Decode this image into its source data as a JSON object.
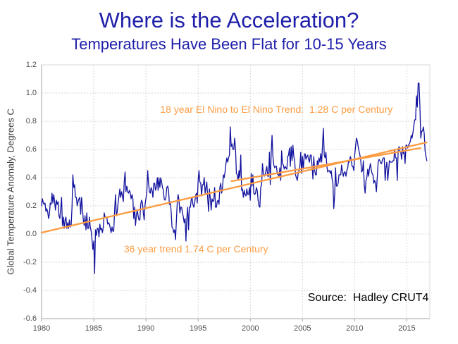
{
  "chart_data": {
    "type": "line",
    "title": "Where is the Acceleration?",
    "subtitle": "Temperatures Have Been Flat for 10-15 Years",
    "xlabel": "",
    "ylabel": "Global Temperature Anomaly, Degrees C",
    "xlim": [
      1980,
      2017.2
    ],
    "ylim": [
      -0.6,
      1.2
    ],
    "x_ticks": [
      1980,
      1985,
      1990,
      1995,
      2000,
      2005,
      2010,
      2015
    ],
    "y_ticks": [
      -0.6,
      -0.4,
      -0.2,
      0.0,
      0.2,
      0.4,
      0.6,
      0.8,
      1.0,
      1.2
    ],
    "grid": true,
    "legend": "none",
    "style": {
      "grid_color": "#d6d6d6",
      "border_color": "#d9d9d9",
      "axis_color": "#a6a6a6",
      "title_color": "#1f1faa",
      "tick_color": "#4d4d4d"
    },
    "series": [
      {
        "name": "HadCRUT4 monthly global temperature anomaly",
        "color": "#12129e",
        "start_year": 1980,
        "points_per_year": 12,
        "values": [
          0.2,
          0.25,
          0.22,
          0.21,
          0.22,
          0.16,
          0.18,
          0.16,
          0.11,
          0.14,
          0.22,
          0.21,
          0.29,
          0.22,
          0.28,
          0.23,
          0.17,
          0.24,
          0.21,
          0.23,
          0.13,
          0.11,
          0.18,
          0.26,
          0.06,
          0.12,
          0.04,
          0.1,
          0.12,
          0.04,
          0.08,
          0.04,
          0.1,
          0.05,
          0.06,
          0.19,
          0.42,
          0.33,
          0.35,
          0.26,
          0.26,
          0.2,
          0.23,
          0.25,
          0.26,
          0.14,
          0.26,
          0.18,
          0.1,
          0.06,
          0.13,
          0.03,
          0.15,
          0.04,
          0.04,
          0.12,
          0.05,
          0.02,
          -0.04,
          -0.11,
          -0.05,
          -0.28,
          0.03,
          -0.01,
          0.04,
          0.04,
          -0.02,
          0.07,
          0.03,
          0.04,
          0.01,
          0.05,
          0.15,
          0.12,
          0.12,
          0.12,
          0.07,
          0.08,
          0.07,
          0.04,
          0.01,
          0.05,
          0.02,
          0.02,
          0.17,
          0.28,
          0.13,
          0.16,
          0.22,
          0.27,
          0.32,
          0.26,
          0.3,
          0.27,
          0.23,
          0.37,
          0.44,
          0.3,
          0.34,
          0.3,
          0.29,
          0.31,
          0.29,
          0.25,
          0.28,
          0.25,
          0.11,
          0.19,
          0.06,
          0.13,
          0.17,
          0.13,
          0.1,
          0.1,
          0.21,
          0.24,
          0.22,
          0.15,
          0.1,
          0.21,
          0.25,
          0.3,
          0.45,
          0.36,
          0.3,
          0.29,
          0.33,
          0.31,
          0.26,
          0.36,
          0.36,
          0.31,
          0.33,
          0.4,
          0.31,
          0.4,
          0.33,
          0.4,
          0.37,
          0.33,
          0.31,
          0.25,
          0.24,
          0.26,
          0.33,
          0.34,
          0.31,
          0.21,
          0.23,
          0.16,
          0.05,
          0.04,
          0.01,
          0.03,
          -0.04,
          0.09,
          0.23,
          0.28,
          0.24,
          0.15,
          0.19,
          0.19,
          0.15,
          0.12,
          0.08,
          0.11,
          -0.05,
          0.11,
          0.19,
          0.03,
          0.19,
          0.19,
          0.24,
          0.26,
          0.21,
          0.19,
          0.22,
          0.27,
          0.29,
          0.22,
          0.38,
          0.45,
          0.37,
          0.36,
          0.27,
          0.35,
          0.35,
          0.4,
          0.29,
          0.33,
          0.37,
          0.25,
          0.16,
          0.32,
          0.25,
          0.17,
          0.25,
          0.23,
          0.24,
          0.33,
          0.19,
          0.19,
          0.23,
          0.24,
          0.21,
          0.33,
          0.36,
          0.29,
          0.32,
          0.42,
          0.4,
          0.44,
          0.5,
          0.54,
          0.51,
          0.54,
          0.56,
          0.76,
          0.62,
          0.64,
          0.6,
          0.6,
          0.68,
          0.6,
          0.43,
          0.42,
          0.38,
          0.45,
          0.4,
          0.56,
          0.31,
          0.32,
          0.26,
          0.31,
          0.28,
          0.27,
          0.32,
          0.28,
          0.28,
          0.33,
          0.24,
          0.43,
          0.34,
          0.42,
          0.29,
          0.28,
          0.29,
          0.33,
          0.31,
          0.24,
          0.2,
          0.19,
          0.33,
          0.35,
          0.5,
          0.43,
          0.41,
          0.42,
          0.45,
          0.48,
          0.41,
          0.41,
          0.58,
          0.35,
          0.58,
          0.7,
          0.55,
          0.49,
          0.47,
          0.48,
          0.48,
          0.43,
          0.42,
          0.41,
          0.47,
          0.38,
          0.59,
          0.5,
          0.49,
          0.46,
          0.48,
          0.47,
          0.46,
          0.55,
          0.56,
          0.61,
          0.48,
          0.62,
          0.52,
          0.63,
          0.55,
          0.52,
          0.42,
          0.4,
          0.38,
          0.43,
          0.45,
          0.48,
          0.58,
          0.43,
          0.55,
          0.46,
          0.56,
          0.57,
          0.53,
          0.55,
          0.56,
          0.53,
          0.51,
          0.56,
          0.56,
          0.48,
          0.39,
          0.55,
          0.45,
          0.42,
          0.42,
          0.52,
          0.49,
          0.54,
          0.51,
          0.57,
          0.51,
          0.63,
          0.75,
          0.56,
          0.54,
          0.58,
          0.48,
          0.44,
          0.45,
          0.45,
          0.43,
          0.45,
          0.39,
          0.36,
          0.18,
          0.28,
          0.47,
          0.34,
          0.34,
          0.36,
          0.42,
          0.42,
          0.42,
          0.49,
          0.44,
          0.41,
          0.44,
          0.44,
          0.41,
          0.45,
          0.47,
          0.52,
          0.51,
          0.55,
          0.53,
          0.48,
          0.48,
          0.45,
          0.56,
          0.62,
          0.68,
          0.66,
          0.62,
          0.59,
          0.56,
          0.52,
          0.44,
          0.45,
          0.52,
          0.35,
          0.29,
          0.38,
          0.4,
          0.46,
          0.41,
          0.46,
          0.5,
          0.46,
          0.43,
          0.42,
          0.36,
          0.38,
          0.36,
          0.3,
          0.4,
          0.51,
          0.53,
          0.52,
          0.5,
          0.5,
          0.53,
          0.54,
          0.54,
          0.38,
          0.47,
          0.51,
          0.38,
          0.45,
          0.52,
          0.51,
          0.51,
          0.51,
          0.52,
          0.52,
          0.6,
          0.54,
          0.54,
          0.38,
          0.59,
          0.62,
          0.59,
          0.58,
          0.53,
          0.62,
          0.57,
          0.58,
          0.5,
          0.63,
          0.63,
          0.61,
          0.63,
          0.64,
          0.66,
          0.7,
          0.68,
          0.72,
          0.77,
          0.81,
          0.81,
          0.98,
          0.9,
          1.07,
          1.07,
          0.91,
          0.68,
          0.73,
          0.73,
          0.76,
          0.71,
          0.59,
          0.55,
          0.52
        ]
      }
    ],
    "trend_lines": [
      {
        "id": "36yr",
        "label": "36 year trend 1.74 C per Century",
        "color": "#fb9c42",
        "x": [
          1980.0,
          2016.9
        ],
        "y": [
          0.01,
          0.65
        ],
        "label_pos": {
          "x": 1994.8,
          "y": -0.105
        },
        "label_size": 14
      },
      {
        "id": "18yr",
        "label": "18 year El Nino to El Nino Trend:  1.28 C per Century",
        "color": "#fb9c42",
        "x": [
          1998.2,
          2016.3
        ],
        "y": [
          0.375,
          0.61
        ],
        "label_pos": {
          "x": 2002.5,
          "y": 0.885
        },
        "label_size": 14
      }
    ],
    "annotations": [
      {
        "id": "source-note",
        "text": "Source:  Hadley CRUT4",
        "color": "#000000",
        "x": 2011.3,
        "y": -0.455,
        "size": 16
      }
    ]
  }
}
